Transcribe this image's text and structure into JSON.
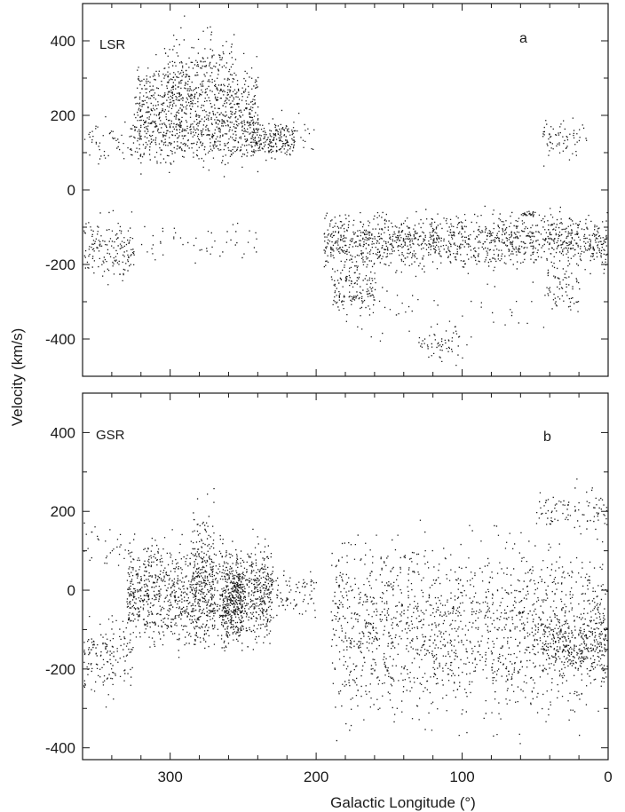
{
  "figure": {
    "ylabel": "Velocity  (km/s)",
    "xlabel": "Galactic Longitude (°)"
  },
  "chart_data": [
    {
      "type": "scatter",
      "panel_letter": "a",
      "frame_label": "LSR",
      "x_ticks": [
        "300",
        "200",
        "100",
        "0"
      ],
      "y_ticks": [
        "400",
        "200",
        "0",
        "-200",
        "-400"
      ],
      "xlim": [
        360,
        0
      ],
      "ylim": [
        -500,
        500
      ],
      "x_reversed": true,
      "marker_color": "#1a1a1a",
      "clusters": [
        {
          "lon": [
            325,
            240
          ],
          "vel": [
            85,
            330
          ],
          "density": 900
        },
        {
          "lon": [
            305,
            255
          ],
          "vel": [
            200,
            420
          ],
          "density": 200
        },
        {
          "lon": [
            360,
            200
          ],
          "vel": [
            85,
            190
          ],
          "density": 260
        },
        {
          "lon": [
            245,
            215
          ],
          "vel": [
            90,
            180
          ],
          "density": 160
        },
        {
          "lon": [
            45,
            15
          ],
          "vel": [
            85,
            185
          ],
          "density": 70
        },
        {
          "lon": [
            360,
            325
          ],
          "vel": [
            -230,
            -75
          ],
          "density": 160
        },
        {
          "lon": [
            320,
            240
          ],
          "vel": [
            -180,
            -90
          ],
          "density": 50
        },
        {
          "lon": [
            195,
            0
          ],
          "vel": [
            -200,
            -70
          ],
          "density": 1300
        },
        {
          "lon": [
            190,
            160
          ],
          "vel": [
            -340,
            -180
          ],
          "density": 160
        },
        {
          "lon": [
            130,
            100
          ],
          "vel": [
            -460,
            -360
          ],
          "density": 60
        },
        {
          "lon": [
            45,
            20
          ],
          "vel": [
            -320,
            -200
          ],
          "density": 70
        },
        {
          "lon": [
            170,
            40
          ],
          "vel": [
            -400,
            -220
          ],
          "density": 50
        },
        {
          "lon": [
            60,
            50
          ],
          "vel": [
            -70,
            -55
          ],
          "density": 25
        }
      ]
    },
    {
      "type": "scatter",
      "panel_letter": "b",
      "frame_label": "GSR",
      "x_ticks": [
        "300",
        "200",
        "100",
        "0"
      ],
      "y_ticks": [
        "400",
        "200",
        "0",
        "-200",
        "-400"
      ],
      "xlim": [
        360,
        0
      ],
      "ylim": [
        -430,
        500
      ],
      "x_reversed": true,
      "marker_color": "#1a1a1a",
      "clusters": [
        {
          "lon": [
            330,
            230
          ],
          "vel": [
            -120,
            110
          ],
          "density": 1300
        },
        {
          "lon": [
            285,
            270
          ],
          "vel": [
            -120,
            220
          ],
          "density": 160
        },
        {
          "lon": [
            265,
            250
          ],
          "vel": [
            -130,
            80
          ],
          "density": 260
        },
        {
          "lon": [
            245,
            200
          ],
          "vel": [
            -60,
            40
          ],
          "density": 120
        },
        {
          "lon": [
            360,
            325
          ],
          "vel": [
            -260,
            -80
          ],
          "density": 160
        },
        {
          "lon": [
            190,
            0
          ],
          "vel": [
            -300,
            110
          ],
          "density": 1700
        },
        {
          "lon": [
            45,
            0
          ],
          "vel": [
            -200,
            -60
          ],
          "density": 260
        },
        {
          "lon": [
            50,
            0
          ],
          "vel": [
            150,
            260
          ],
          "density": 90
        },
        {
          "lon": [
            360,
            330
          ],
          "vel": [
            60,
            180
          ],
          "density": 30
        }
      ]
    }
  ]
}
